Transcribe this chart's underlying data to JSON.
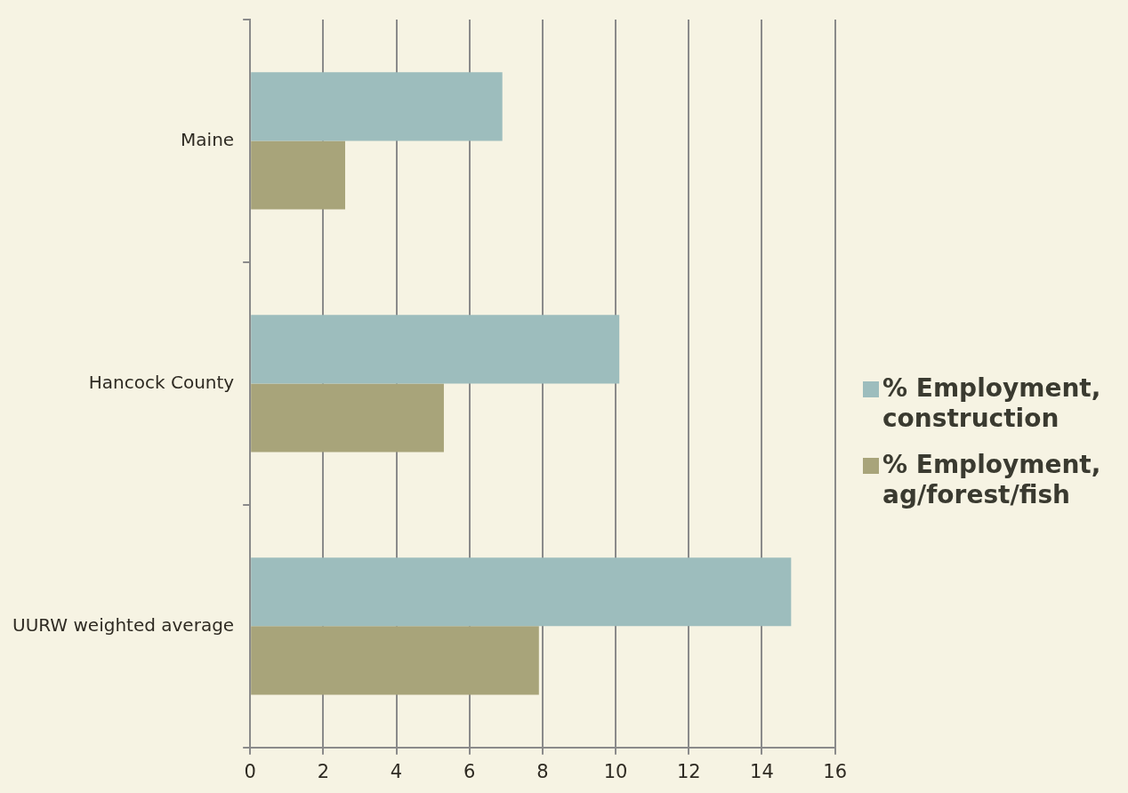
{
  "chart_data": {
    "type": "bar",
    "orientation": "horizontal",
    "categories": [
      "Maine",
      "Hancock County",
      "UURW weighted average"
    ],
    "series": [
      {
        "name": "% Employment, construction",
        "color": "#9dbdbd",
        "values": [
          6.9,
          10.1,
          14.8
        ]
      },
      {
        "name": "% Employment, ag/forest/fish",
        "color": "#a8a47a",
        "values": [
          2.6,
          5.3,
          7.9
        ]
      }
    ],
    "xlim": [
      0,
      16
    ],
    "xticks": [
      0,
      2,
      4,
      6,
      8,
      10,
      12,
      14,
      16
    ],
    "grid": "x",
    "legend": "right"
  }
}
